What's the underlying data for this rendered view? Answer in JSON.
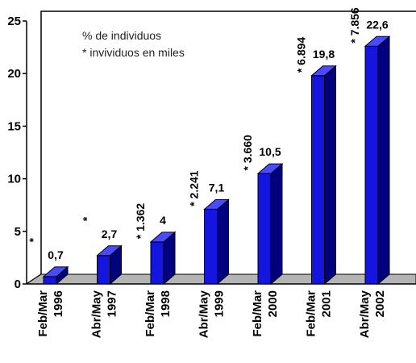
{
  "chart_data": {
    "type": "bar",
    "categories": [
      [
        "Feb/Mar",
        "1996"
      ],
      [
        "Abr/May",
        "1997"
      ],
      [
        "Feb/Mar",
        "1998"
      ],
      [
        "Abr/May",
        "1999"
      ],
      [
        "Feb/Mar",
        "2000"
      ],
      [
        "Feb/Mar",
        "2001"
      ],
      [
        "Abr/May",
        "2002"
      ]
    ],
    "values": [
      0.7,
      2.7,
      4,
      7.1,
      10.5,
      19.8,
      22.6
    ],
    "value_labels": [
      "0,7",
      "2,7",
      "4",
      "7,1",
      "10,5",
      "19,8",
      "22,6"
    ],
    "individuals_thousands": [
      "",
      "",
      "1.362",
      "2.241",
      "3.660",
      "6.894",
      "7.856"
    ],
    "individuals_labels": [
      "*",
      "*",
      "* 1.362",
      "* 2.241",
      "* 3.660",
      "* 6.894",
      "* 7.856"
    ],
    "legend": [
      "% de individuos",
      "* invividuos en miles"
    ],
    "yticks": [
      0,
      5,
      10,
      15,
      20,
      25
    ],
    "ylim": [
      0,
      25
    ],
    "grid": false,
    "colors": {
      "bar_front": "#1515e0",
      "bar_side": "#000080",
      "bar_top": "#4a4aff",
      "floor": "#b4b4b4",
      "axis": "#000000"
    }
  }
}
